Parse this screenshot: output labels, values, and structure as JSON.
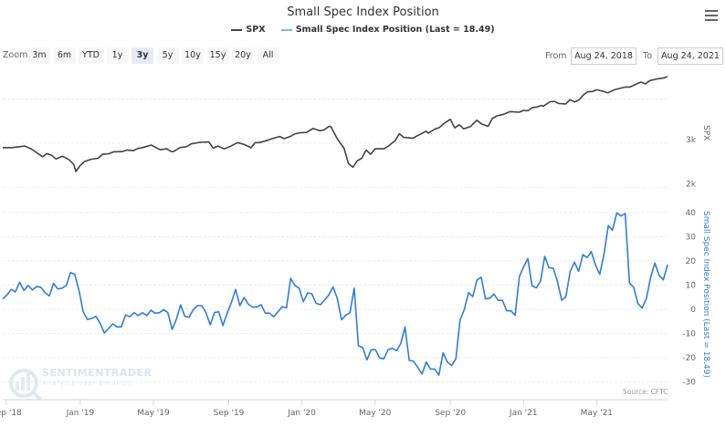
{
  "header": {
    "title": "Small Spec Index Position",
    "menu_icon": "hamburger-icon"
  },
  "legend": [
    {
      "label": "SPX",
      "color": "#434348"
    },
    {
      "label": "Small Spec Index Position (Last = 18.49)",
      "color": "#2f7ed8"
    }
  ],
  "zoom": {
    "label": "Zoom",
    "buttons": [
      "3m",
      "6m",
      "YTD",
      "1y",
      "3y",
      "5y",
      "10y",
      "15y",
      "20y",
      "All"
    ],
    "selected": "3y"
  },
  "range": {
    "from_label": "From",
    "from_value": "Aug 24, 2018",
    "to_label": "To",
    "to_value": "Aug 24, 2021"
  },
  "watermark": {
    "name": "SENTIMENTRADER",
    "tagline": "Analysis over Emotion"
  },
  "source": "Source: CFTC",
  "chart_data": {
    "type": "line",
    "title": "Small Spec Index Position",
    "x_range_years": [
      0,
      3
    ],
    "x_ticks": [
      {
        "label": "Sep '18",
        "t": 0.016
      },
      {
        "label": "Jan '19",
        "t": 0.35
      },
      {
        "label": "May '19",
        "t": 0.68
      },
      {
        "label": "Sep '19",
        "t": 1.02
      },
      {
        "label": "Jan '20",
        "t": 1.35
      },
      {
        "label": "May '20",
        "t": 1.68
      },
      {
        "label": "Sep '20",
        "t": 2.02
      },
      {
        "label": "Jan '21",
        "t": 2.35
      },
      {
        "label": "May '21",
        "t": 2.68
      }
    ],
    "axes": {
      "spx": {
        "title": "SPX",
        "ticks": [
          {
            "v": 2000,
            "label": "2k"
          },
          {
            "v": 3000,
            "label": "3k"
          },
          {
            "v": 4000,
            "label": ""
          }
        ],
        "color": "#434348"
      },
      "ssi": {
        "title": "Small Spec Index Position (Last = 18.49)",
        "ticks": [
          40,
          30,
          20,
          10,
          0,
          -10,
          -20,
          -30
        ],
        "color": "#2f7ed8"
      }
    },
    "series": [
      {
        "name": "SPX",
        "color": "#434348",
        "t": [
          0.0,
          0.04,
          0.1,
          0.13,
          0.18,
          0.2,
          0.22,
          0.24,
          0.27,
          0.3,
          0.32,
          0.33,
          0.35,
          0.37,
          0.4,
          0.43,
          0.45,
          0.48,
          0.5,
          0.54,
          0.56,
          0.59,
          0.61,
          0.63,
          0.67,
          0.71,
          0.74,
          0.76,
          0.77,
          0.8,
          0.83,
          0.85,
          0.89,
          0.93,
          0.95,
          0.97,
          1.0,
          1.03,
          1.06,
          1.09,
          1.12,
          1.14,
          1.16,
          1.2,
          1.22,
          1.25,
          1.27,
          1.3,
          1.32,
          1.34,
          1.37,
          1.4,
          1.43,
          1.45,
          1.47,
          1.48,
          1.51,
          1.54,
          1.56,
          1.58,
          1.6,
          1.62,
          1.64,
          1.66,
          1.68,
          1.72,
          1.74,
          1.77,
          1.79,
          1.81,
          1.83,
          1.85,
          1.88,
          1.91,
          1.92,
          1.95,
          1.97,
          1.99,
          2.02,
          2.04,
          2.06,
          2.08,
          2.11,
          2.14,
          2.16,
          2.19,
          2.21,
          2.23,
          2.26,
          2.29,
          2.33,
          2.35,
          2.37,
          2.39,
          2.41,
          2.43,
          2.44,
          2.47,
          2.49,
          2.51,
          2.54,
          2.56,
          2.58,
          2.6,
          2.62,
          2.64,
          2.66,
          2.68,
          2.71,
          2.73,
          2.76,
          2.78,
          2.81,
          2.83,
          2.86,
          2.88,
          2.9,
          2.92,
          2.95,
          2.98,
          3.0
        ],
        "values": [
          2902,
          2902,
          2937,
          2868,
          2694,
          2764,
          2729,
          2646,
          2708,
          2625,
          2521,
          2361,
          2500,
          2590,
          2639,
          2660,
          2750,
          2764,
          2806,
          2812,
          2847,
          2833,
          2882,
          2902,
          2958,
          2854,
          2875,
          2812,
          2812,
          2902,
          2923,
          2986,
          3021,
          3028,
          2889,
          2937,
          2875,
          2937,
          3014,
          2972,
          2902,
          3014,
          3014,
          3076,
          3111,
          3153,
          3104,
          3160,
          3215,
          3236,
          3243,
          3333,
          3285,
          3299,
          3375,
          3382,
          3097,
          2889,
          2542,
          2458,
          2604,
          2660,
          2847,
          2750,
          2875,
          2875,
          2937,
          3056,
          3215,
          3132,
          3125,
          3111,
          3194,
          3271,
          3229,
          3319,
          3354,
          3444,
          3542,
          3347,
          3417,
          3326,
          3375,
          3521,
          3438,
          3382,
          3563,
          3618,
          3653,
          3715,
          3701,
          3743,
          3736,
          3806,
          3819,
          3854,
          3840,
          3938,
          3944,
          3896,
          3889,
          3986,
          3931,
          3979,
          4090,
          4167,
          4167,
          4208,
          4174,
          4139,
          4208,
          4236,
          4271,
          4271,
          4340,
          4382,
          4340,
          4417,
          4452,
          4472,
          4507
        ]
      },
      {
        "name": "Small Spec Index Position",
        "color": "#2f7ed8",
        "spacing": "weekly",
        "last": 18.49,
        "values": [
          4.3,
          5.9,
          8.2,
          7.2,
          11.2,
          7.8,
          9.9,
          8.0,
          9.4,
          9.1,
          6.9,
          5.5,
          10.7,
          8.4,
          8.7,
          9.9,
          15.2,
          14.5,
          7.8,
          -1.0,
          -4.2,
          -3.8,
          -2.9,
          -5.7,
          -9.8,
          -7.9,
          -6.0,
          -7.3,
          -7.3,
          -2.3,
          -3.1,
          -1.4,
          -2.6,
          -1.4,
          -2.6,
          -0.4,
          -1.6,
          -1.4,
          -0.1,
          -1.4,
          -8.3,
          -4.2,
          1.8,
          -2.9,
          -3.3,
          -0.1,
          1.5,
          1.5,
          -1.4,
          -6.4,
          -1.4,
          -1.0,
          -6.7,
          -1.6,
          2.8,
          8.2,
          1.5,
          4.9,
          2.1,
          0.9,
          0.9,
          1.9,
          -1.6,
          -1.6,
          -3.1,
          -1.0,
          1.1,
          0.6,
          12.8,
          9.9,
          8.7,
          3.1,
          6.8,
          6.4,
          2.5,
          1.9,
          3.8,
          5.9,
          9.3,
          4.6,
          -4.3,
          -2.4,
          -1.4,
          8.7,
          -15.1,
          -15.8,
          -20.9,
          -16.7,
          -16.7,
          -20.1,
          -20.5,
          -16.7,
          -16.1,
          -17.1,
          -14.2,
          -7.3,
          -21.1,
          -21.5,
          -24.0,
          -26.8,
          -21.8,
          -24.7,
          -24.7,
          -27.2,
          -18.0,
          -21.8,
          -23.3,
          -20.5,
          -4.4,
          -0.1,
          6.9,
          5.2,
          12.1,
          13.3,
          4.3,
          4.6,
          6.3,
          3.7,
          3.7,
          -0.6,
          -0.6,
          -2.5,
          13.5,
          17.5,
          21.0,
          9.7,
          8.9,
          11.6,
          21.9,
          17.2,
          17.0,
          11.6,
          3.7,
          5.3,
          15.7,
          19.5,
          15.7,
          22.6,
          21.4,
          23.8,
          18.2,
          14.5,
          22.8,
          34.6,
          32.7,
          39.9,
          38.6,
          39.6,
          10.9,
          9.1,
          2.4,
          0.5,
          4.4,
          13.2,
          19.1,
          14.1,
          12.2,
          18.49
        ]
      }
    ],
    "grid": true,
    "legend_position": "top-center"
  }
}
